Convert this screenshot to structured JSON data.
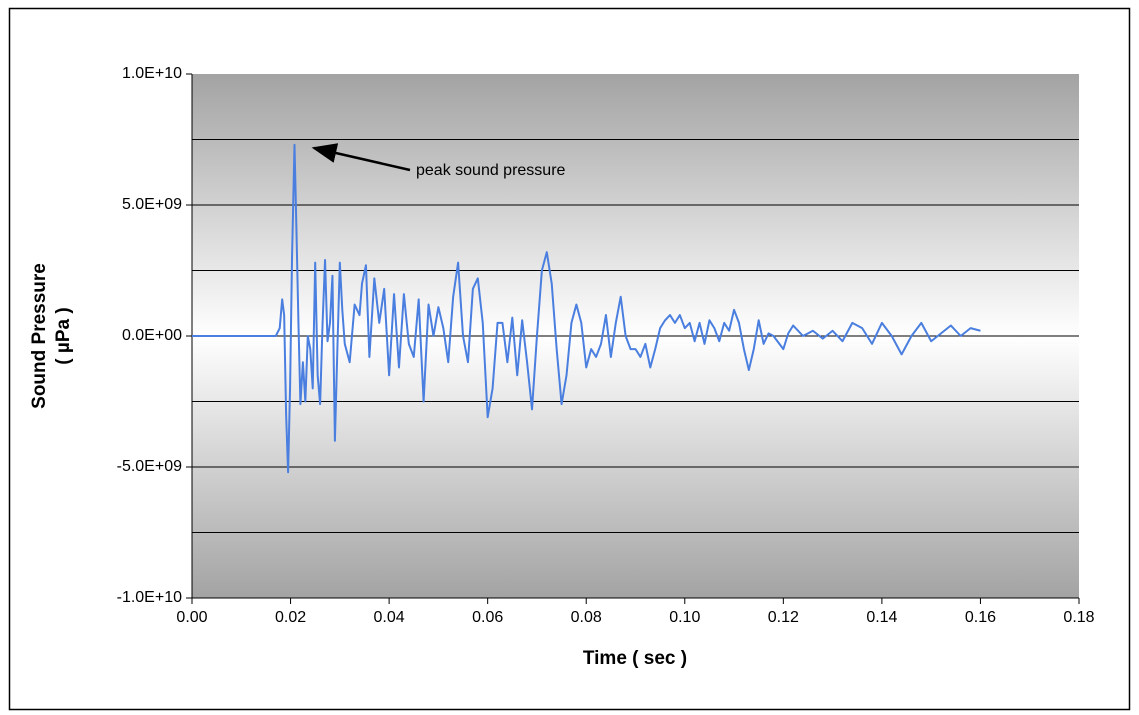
{
  "chart_data": {
    "type": "line",
    "ylabel": [
      "Sound Pressure",
      "( µPa )"
    ],
    "xlabel": "Time ( sec )",
    "annotation": "peak sound pressure",
    "color": "#4a7fe0",
    "xlim": [
      0,
      0.18
    ],
    "xticks": [
      {
        "value": 0,
        "label": "0.00"
      },
      {
        "value": 0.02,
        "label": "0.02"
      },
      {
        "value": 0.04,
        "label": "0.04"
      },
      {
        "value": 0.06,
        "label": "0.06"
      },
      {
        "value": 0.08,
        "label": "0.08"
      },
      {
        "value": 0.1,
        "label": "0.10"
      },
      {
        "value": 0.12,
        "label": "0.12"
      },
      {
        "value": 0.14,
        "label": "0.14"
      },
      {
        "value": 0.16,
        "label": "0.16"
      },
      {
        "value": 0.18,
        "label": "0.18"
      }
    ],
    "ylim": [
      -10000000000.0,
      10000000000.0
    ],
    "yticks": [
      {
        "value": -10000000000.0,
        "label": "-1.0E+10"
      },
      {
        "value": -5000000000.0,
        "label": "-5.0E+09"
      },
      {
        "value": 0,
        "label": "0.0E+00"
      },
      {
        "value": 5000000000.0,
        "label": "5.0E+09"
      },
      {
        "value": 10000000000.0,
        "label": "1.0E+10"
      }
    ],
    "ygrid": [
      -7500000000.0,
      -5000000000.0,
      -2500000000.0,
      0,
      2500000000.0,
      5000000000.0,
      7500000000.0
    ],
    "x": [
      0,
      0.017,
      0.0178,
      0.0183,
      0.0187,
      0.0191,
      0.0195,
      0.0199,
      0.0203,
      0.0208,
      0.0212,
      0.0216,
      0.022,
      0.0225,
      0.023,
      0.0235,
      0.024,
      0.0245,
      0.025,
      0.0255,
      0.026,
      0.0265,
      0.027,
      0.0275,
      0.028,
      0.0285,
      0.029,
      0.0295,
      0.03,
      0.0305,
      0.031,
      0.032,
      0.033,
      0.034,
      0.0345,
      0.0353,
      0.036,
      0.037,
      0.038,
      0.039,
      0.04,
      0.041,
      0.042,
      0.043,
      0.044,
      0.045,
      0.046,
      0.047,
      0.048,
      0.049,
      0.05,
      0.051,
      0.052,
      0.053,
      0.054,
      0.055,
      0.056,
      0.057,
      0.058,
      0.059,
      0.06,
      0.061,
      0.062,
      0.063,
      0.064,
      0.065,
      0.066,
      0.067,
      0.068,
      0.069,
      0.07,
      0.071,
      0.072,
      0.073,
      0.074,
      0.075,
      0.076,
      0.077,
      0.078,
      0.079,
      0.08,
      0.081,
      0.082,
      0.083,
      0.084,
      0.085,
      0.086,
      0.087,
      0.088,
      0.089,
      0.09,
      0.091,
      0.092,
      0.093,
      0.094,
      0.095,
      0.096,
      0.097,
      0.098,
      0.099,
      0.1,
      0.101,
      0.102,
      0.103,
      0.104,
      0.105,
      0.106,
      0.107,
      0.108,
      0.109,
      0.11,
      0.111,
      0.112,
      0.113,
      0.114,
      0.115,
      0.116,
      0.117,
      0.118,
      0.12,
      0.121,
      0.122,
      0.124,
      0.126,
      0.128,
      0.13,
      0.132,
      0.134,
      0.136,
      0.138,
      0.14,
      0.142,
      0.144,
      0.146,
      0.148,
      0.15,
      0.152,
      0.154,
      0.156,
      0.158,
      0.16
    ],
    "values": [
      0,
      0,
      300000000.0,
      1400000000.0,
      800000000.0,
      -3000000000.0,
      -5200000000.0,
      -2000000000.0,
      3000000000.0,
      7300000000.0,
      4000000000.0,
      500000000.0,
      -2600000000.0,
      -1000000000.0,
      -2500000000.0,
      0,
      -500000000.0,
      -2000000000.0,
      2800000000.0,
      -1500000000.0,
      -2600000000.0,
      500000000.0,
      2900000000.0,
      -200000000.0,
      500000000.0,
      2300000000.0,
      -4000000000.0,
      -500000000.0,
      2800000000.0,
      1000000000.0,
      -300000000.0,
      -1000000000.0,
      1200000000.0,
      800000000.0,
      2000000000.0,
      2700000000.0,
      -800000000.0,
      2200000000.0,
      500000000.0,
      1800000000.0,
      -1500000000.0,
      1600000000.0,
      -1200000000.0,
      1600000000.0,
      -300000000.0,
      -800000000.0,
      1400000000.0,
      -2500000000.0,
      1200000000.0,
      0,
      1100000000.0,
      300000000.0,
      -1000000000.0,
      1500000000.0,
      2800000000.0,
      0,
      -1000000000.0,
      1800000000.0,
      2200000000.0,
      500000000.0,
      -3100000000.0,
      -2000000000.0,
      500000000.0,
      500000000.0,
      -1000000000.0,
      700000000.0,
      -1500000000.0,
      600000000.0,
      -1000000000.0,
      -2800000000.0,
      0,
      2500000000.0,
      3200000000.0,
      2000000000.0,
      -500000000.0,
      -2600000000.0,
      -1500000000.0,
      500000000.0,
      1200000000.0,
      500000000.0,
      -1200000000.0,
      -500000000.0,
      -800000000.0,
      -300000000.0,
      800000000.0,
      -800000000.0,
      500000000.0,
      1500000000.0,
      0,
      -500000000.0,
      -500000000.0,
      -800000000.0,
      -300000000.0,
      -1200000000.0,
      -500000000.0,
      300000000.0,
      600000000.0,
      800000000.0,
      500000000.0,
      800000000.0,
      300000000.0,
      500000000.0,
      -200000000.0,
      500000000.0,
      -300000000.0,
      600000000.0,
      300000000.0,
      -200000000.0,
      500000000.0,
      200000000.0,
      1000000000.0,
      500000000.0,
      -500000000.0,
      -1300000000.0,
      -500000000.0,
      600000000.0,
      -300000000.0,
      100000000.0,
      0,
      -500000000.0,
      100000000.0,
      400000000.0,
      0,
      200000000.0,
      -100000000.0,
      200000000.0,
      -200000000.0,
      500000000.0,
      300000000.0,
      -300000000.0,
      500000000.0,
      0,
      -700000000.0,
      0,
      500000000.0,
      -200000000.0,
      100000000.0,
      400000000.0,
      0,
      300000000.0,
      200000000.0
    ]
  }
}
